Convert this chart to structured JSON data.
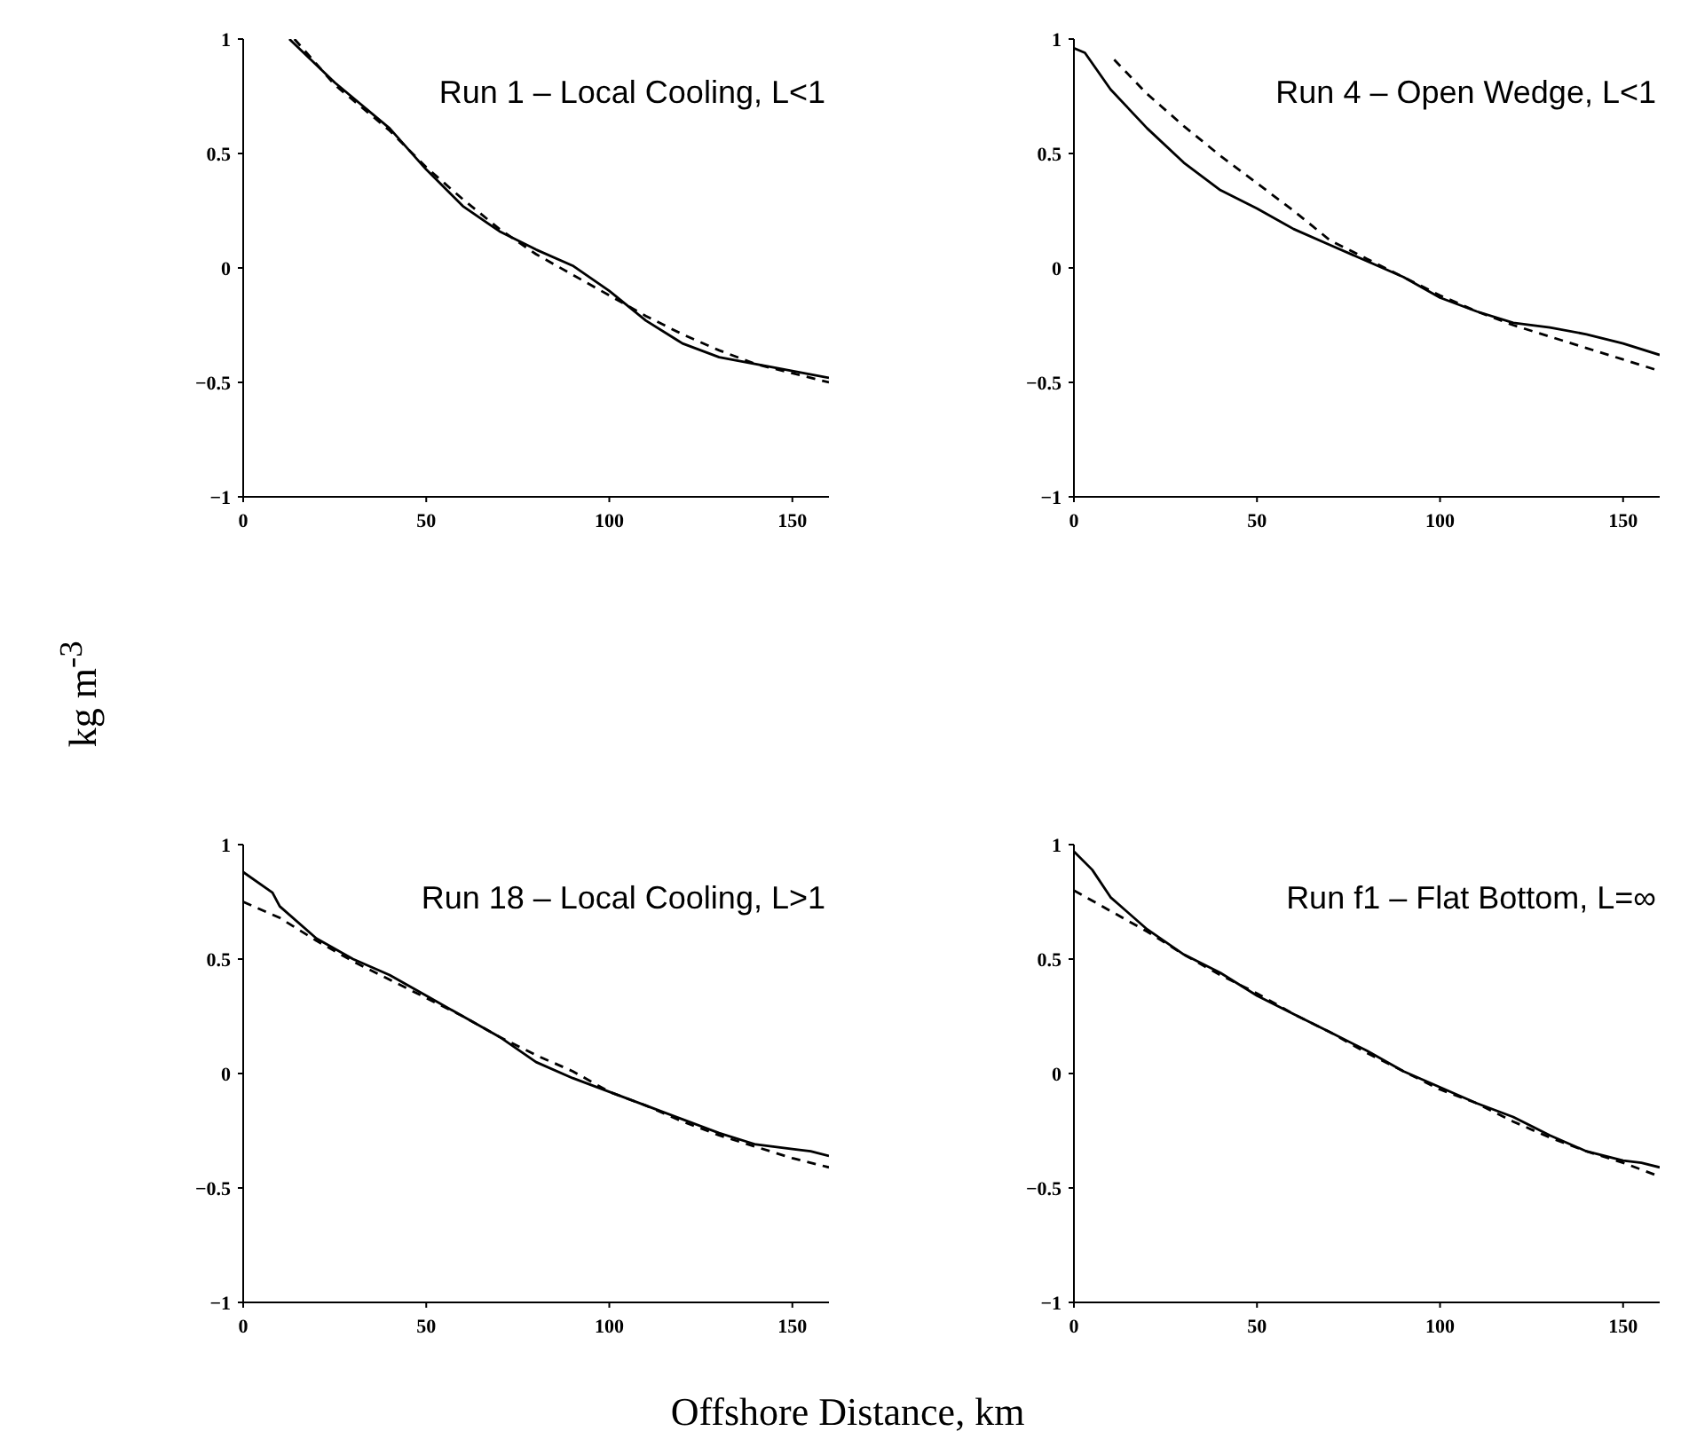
{
  "chart_data": [
    {
      "type": "line",
      "title": "Run 1 – Local Cooling, L<1",
      "xlabel": "Offshore Distance, km",
      "ylabel": "kg m$^{-3}$",
      "xlim": [
        0,
        160
      ],
      "xticks": [
        0,
        50,
        100,
        150
      ],
      "ylim": [
        -1,
        1
      ],
      "yticks": [
        -1,
        -0.5,
        0,
        0.5,
        1
      ],
      "series": [
        {
          "color": "#000000",
          "line_style": "solid",
          "x": [
            12.6,
            25,
            40,
            50,
            60,
            70,
            80,
            90,
            100,
            110,
            120,
            130,
            140,
            150,
            160
          ],
          "values": [
            1.0,
            0.81,
            0.61,
            0.43,
            0.27,
            0.16,
            0.08,
            0.01,
            -0.1,
            -0.23,
            -0.33,
            -0.39,
            -0.42,
            -0.45,
            -0.48
          ]
        },
        {
          "color": "#000000",
          "line_style": "dashed",
          "x": [
            14,
            25,
            40,
            50,
            60,
            70,
            80,
            90,
            100,
            110,
            120,
            130,
            140,
            150,
            160
          ],
          "values": [
            1.0,
            0.8,
            0.6,
            0.44,
            0.3,
            0.17,
            0.06,
            -0.03,
            -0.12,
            -0.21,
            -0.29,
            -0.36,
            -0.42,
            -0.46,
            -0.5
          ]
        }
      ]
    },
    {
      "type": "line",
      "title": "Run 4 – Open Wedge, L<1",
      "xlim": [
        0,
        160
      ],
      "xticks": [
        0,
        50,
        100,
        150
      ],
      "ylim": [
        -1,
        1
      ],
      "yticks": [
        -1,
        -0.5,
        0,
        0.5,
        1
      ],
      "series": [
        {
          "color": "#000000",
          "line_style": "solid",
          "x": [
            0,
            3,
            10,
            20,
            30,
            40,
            50,
            60,
            70,
            80,
            90,
            100,
            110,
            120,
            130,
            140,
            150,
            160
          ],
          "values": [
            0.96,
            0.94,
            0.78,
            0.61,
            0.46,
            0.34,
            0.26,
            0.17,
            0.1,
            0.03,
            -0.04,
            -0.13,
            -0.19,
            -0.24,
            -0.26,
            -0.29,
            -0.33,
            -0.38
          ]
        },
        {
          "color": "#000000",
          "line_style": "dashed",
          "x": [
            11,
            20,
            30,
            40,
            50,
            60,
            70,
            80,
            90,
            100,
            110,
            120,
            130,
            140,
            150,
            160
          ],
          "values": [
            0.91,
            0.76,
            0.62,
            0.49,
            0.37,
            0.25,
            0.12,
            0.04,
            -0.04,
            -0.12,
            -0.19,
            -0.25,
            -0.3,
            -0.35,
            -0.4,
            -0.45
          ]
        }
      ]
    },
    {
      "type": "line",
      "title": "Run 18 – Local Cooling, L>1",
      "xlim": [
        0,
        160
      ],
      "xticks": [
        0,
        50,
        100,
        150
      ],
      "ylim": [
        -1,
        1
      ],
      "yticks": [
        -1,
        -0.5,
        0,
        0.5,
        1
      ],
      "series": [
        {
          "color": "#000000",
          "line_style": "solid",
          "x": [
            0,
            8,
            10,
            20,
            30,
            40,
            50,
            60,
            70,
            80,
            90,
            100,
            110,
            120,
            130,
            140,
            150,
            155,
            160
          ],
          "values": [
            0.88,
            0.79,
            0.73,
            0.59,
            0.5,
            0.43,
            0.34,
            0.25,
            0.16,
            0.05,
            -0.02,
            -0.08,
            -0.14,
            -0.2,
            -0.26,
            -0.31,
            -0.33,
            -0.34,
            -0.36
          ]
        },
        {
          "color": "#000000",
          "line_style": "dashed",
          "x": [
            0,
            10,
            20,
            30,
            40,
            50,
            60,
            70,
            80,
            90,
            100,
            110,
            120,
            130,
            140,
            150,
            160
          ],
          "values": [
            0.75,
            0.68,
            0.58,
            0.49,
            0.41,
            0.33,
            0.25,
            0.16,
            0.08,
            0.01,
            -0.08,
            -0.14,
            -0.21,
            -0.27,
            -0.32,
            -0.37,
            -0.41
          ]
        }
      ]
    },
    {
      "type": "line",
      "title": "Run f1 – Flat Bottom, L=∞",
      "xlim": [
        0,
        160
      ],
      "xticks": [
        0,
        50,
        100,
        150
      ],
      "ylim": [
        -1,
        1
      ],
      "yticks": [
        -1,
        -0.5,
        0,
        0.5,
        1
      ],
      "series": [
        {
          "color": "#000000",
          "line_style": "solid",
          "x": [
            0,
            5,
            10,
            20,
            30,
            40,
            50,
            60,
            70,
            80,
            90,
            100,
            110,
            120,
            130,
            140,
            150,
            155,
            160
          ],
          "values": [
            0.97,
            0.89,
            0.77,
            0.63,
            0.52,
            0.44,
            0.34,
            0.26,
            0.18,
            0.1,
            0.01,
            -0.06,
            -0.13,
            -0.19,
            -0.27,
            -0.34,
            -0.38,
            -0.39,
            -0.41
          ]
        },
        {
          "color": "#000000",
          "line_style": "dashed",
          "x": [
            0,
            10,
            20,
            30,
            40,
            50,
            60,
            70,
            80,
            90,
            100,
            110,
            120,
            130,
            140,
            150,
            160
          ],
          "values": [
            0.8,
            0.71,
            0.62,
            0.52,
            0.43,
            0.35,
            0.26,
            0.18,
            0.09,
            0.01,
            -0.07,
            -0.13,
            -0.21,
            -0.28,
            -0.34,
            -0.39,
            -0.45
          ]
        }
      ]
    }
  ]
}
